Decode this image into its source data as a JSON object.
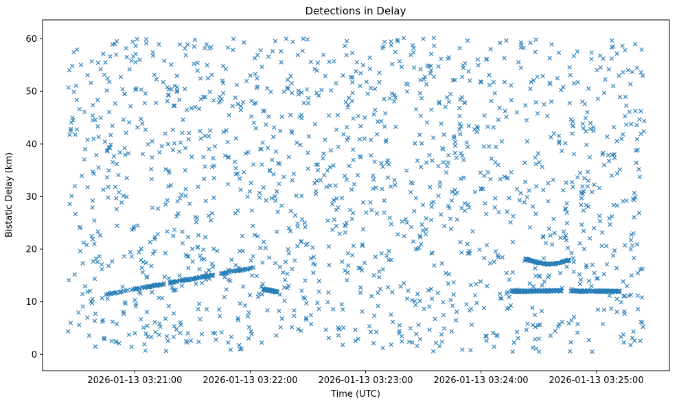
{
  "chart_data": {
    "type": "scatter",
    "title": "Detections in Delay",
    "xlabel": "Time (UTC)",
    "ylabel": "Bistatic Delay (km)",
    "marker": "x",
    "marker_color": "#1f77b4",
    "background_color": "#ffffff",
    "axes_border_color": "#000000",
    "grid": false,
    "legend": false,
    "x_axis": {
      "unit": "seconds after 2026-01-13 03:20:00 UTC",
      "start_seconds": 12,
      "end_seconds": 338,
      "tick_seconds": [
        60,
        120,
        180,
        240,
        300
      ],
      "tick_labels": [
        "2026-01-13 03:21:00",
        "2026-01-13 03:22:00",
        "2026-01-13 03:23:00",
        "2026-01-13 03:24:00",
        "2026-01-13 03:25:00"
      ]
    },
    "y_axis": {
      "min": -3.1,
      "max": 63.6,
      "ticks": [
        0,
        10,
        20,
        30,
        40,
        50,
        60
      ],
      "tick_labels": [
        "0",
        "10",
        "20",
        "30",
        "40",
        "50",
        "60"
      ]
    },
    "noise_cloud": {
      "description": "uniform random clutter detections",
      "count": 1500,
      "t_range": [
        25,
        325
      ],
      "y_range": [
        0.5,
        60.2
      ],
      "seed": 42
    },
    "tracks": [
      {
        "name": "ascending-track",
        "kind": "linear",
        "t_start": 45,
        "t_end": 122,
        "y_start": 11.4,
        "y_end": 16.5,
        "count": 180,
        "y_jitter": 0.14,
        "t_jitter": 0.5
      },
      {
        "name": "dense-blob-0322",
        "kind": "linear",
        "t_start": 126,
        "t_end": 134,
        "y_start": 12.45,
        "y_end": 11.9,
        "count": 80,
        "y_jitter": 0.12,
        "t_jitter": 0.3
      },
      {
        "name": "dip-arc-0324",
        "kind": "polyline",
        "polyline": [
          [
            263,
            18.2
          ],
          [
            267,
            17.7
          ],
          [
            271,
            17.35
          ],
          [
            275,
            17.15
          ],
          [
            279,
            17.25
          ],
          [
            282,
            17.55
          ],
          [
            286,
            17.95
          ]
        ],
        "count": 110,
        "y_jitter": 0.09,
        "t_jitter": 0.3
      },
      {
        "name": "level-band-1",
        "kind": "linear",
        "t_start": 255.5,
        "t_end": 282,
        "y_start": 12.0,
        "y_end": 12.1,
        "count": 150,
        "y_jitter": 0.15,
        "t_jitter": 0.3
      },
      {
        "name": "level-band-2",
        "kind": "linear",
        "t_start": 287,
        "t_end": 312,
        "y_start": 12.05,
        "y_end": 12.0,
        "count": 160,
        "y_jitter": 0.12,
        "t_jitter": 0.3
      }
    ]
  }
}
